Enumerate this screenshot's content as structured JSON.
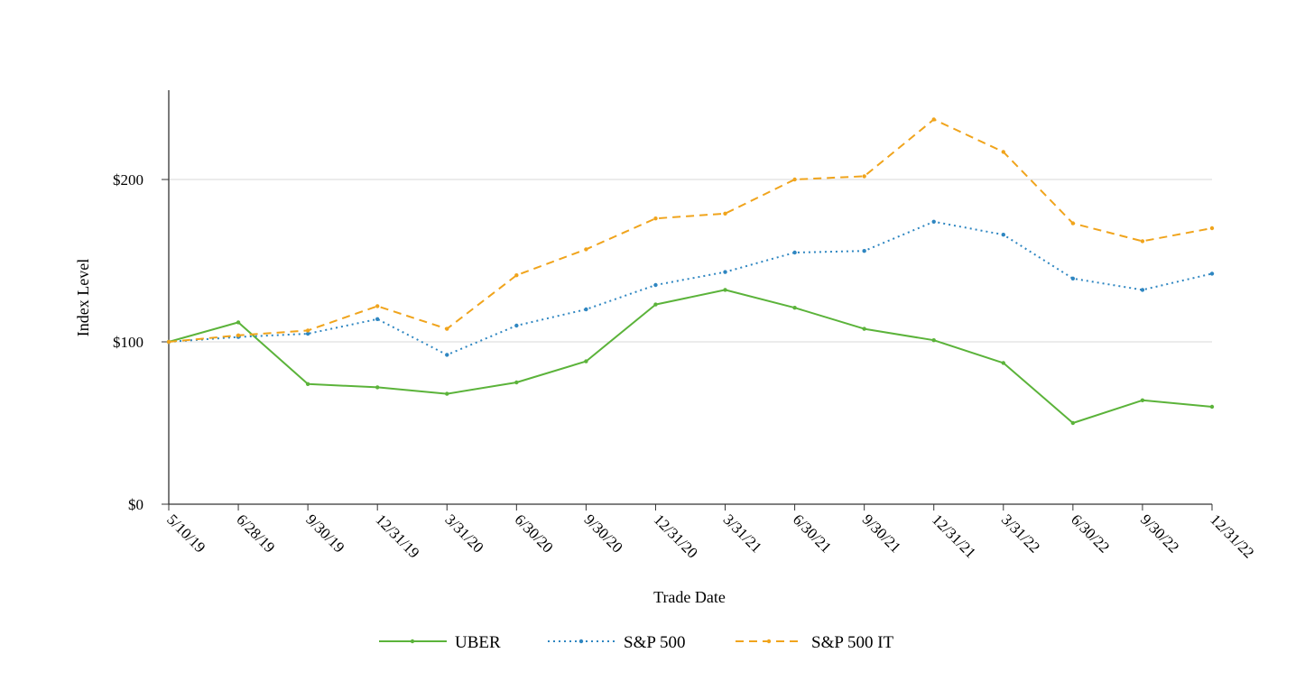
{
  "chart_data": {
    "type": "line",
    "title": "",
    "xlabel": "Trade Date",
    "ylabel": "Index Level",
    "x": [
      "5/10/19",
      "6/28/19",
      "9/30/19",
      "12/31/19",
      "3/31/20",
      "6/30/20",
      "9/30/20",
      "12/31/20",
      "3/31/21",
      "6/30/21",
      "9/30/21",
      "12/31/21",
      "3/31/22",
      "6/30/22",
      "9/30/22",
      "12/31/22"
    ],
    "ylim": [
      0,
      255
    ],
    "yticks": [
      0,
      100,
      200
    ],
    "ytick_labels": [
      "$0",
      "$100",
      "$200"
    ],
    "grid": true,
    "legend_position": "bottom-center",
    "series": [
      {
        "name": "UBER",
        "color": "#5BB33A",
        "style": "solid",
        "values": [
          100,
          112,
          74,
          72,
          68,
          75,
          88,
          123,
          132,
          121,
          108,
          101,
          87,
          50,
          64,
          60
        ]
      },
      {
        "name": "S&P 500",
        "color": "#2E86C1",
        "style": "dotted",
        "values": [
          100,
          103,
          105,
          114,
          92,
          110,
          120,
          135,
          143,
          155,
          156,
          174,
          166,
          139,
          132,
          142
        ]
      },
      {
        "name": "S&P 500 IT",
        "color": "#F0A41C",
        "style": "dashed",
        "values": [
          100,
          104,
          107,
          122,
          108,
          141,
          157,
          176,
          179,
          200,
          202,
          237,
          217,
          173,
          162,
          170
        ]
      }
    ]
  }
}
